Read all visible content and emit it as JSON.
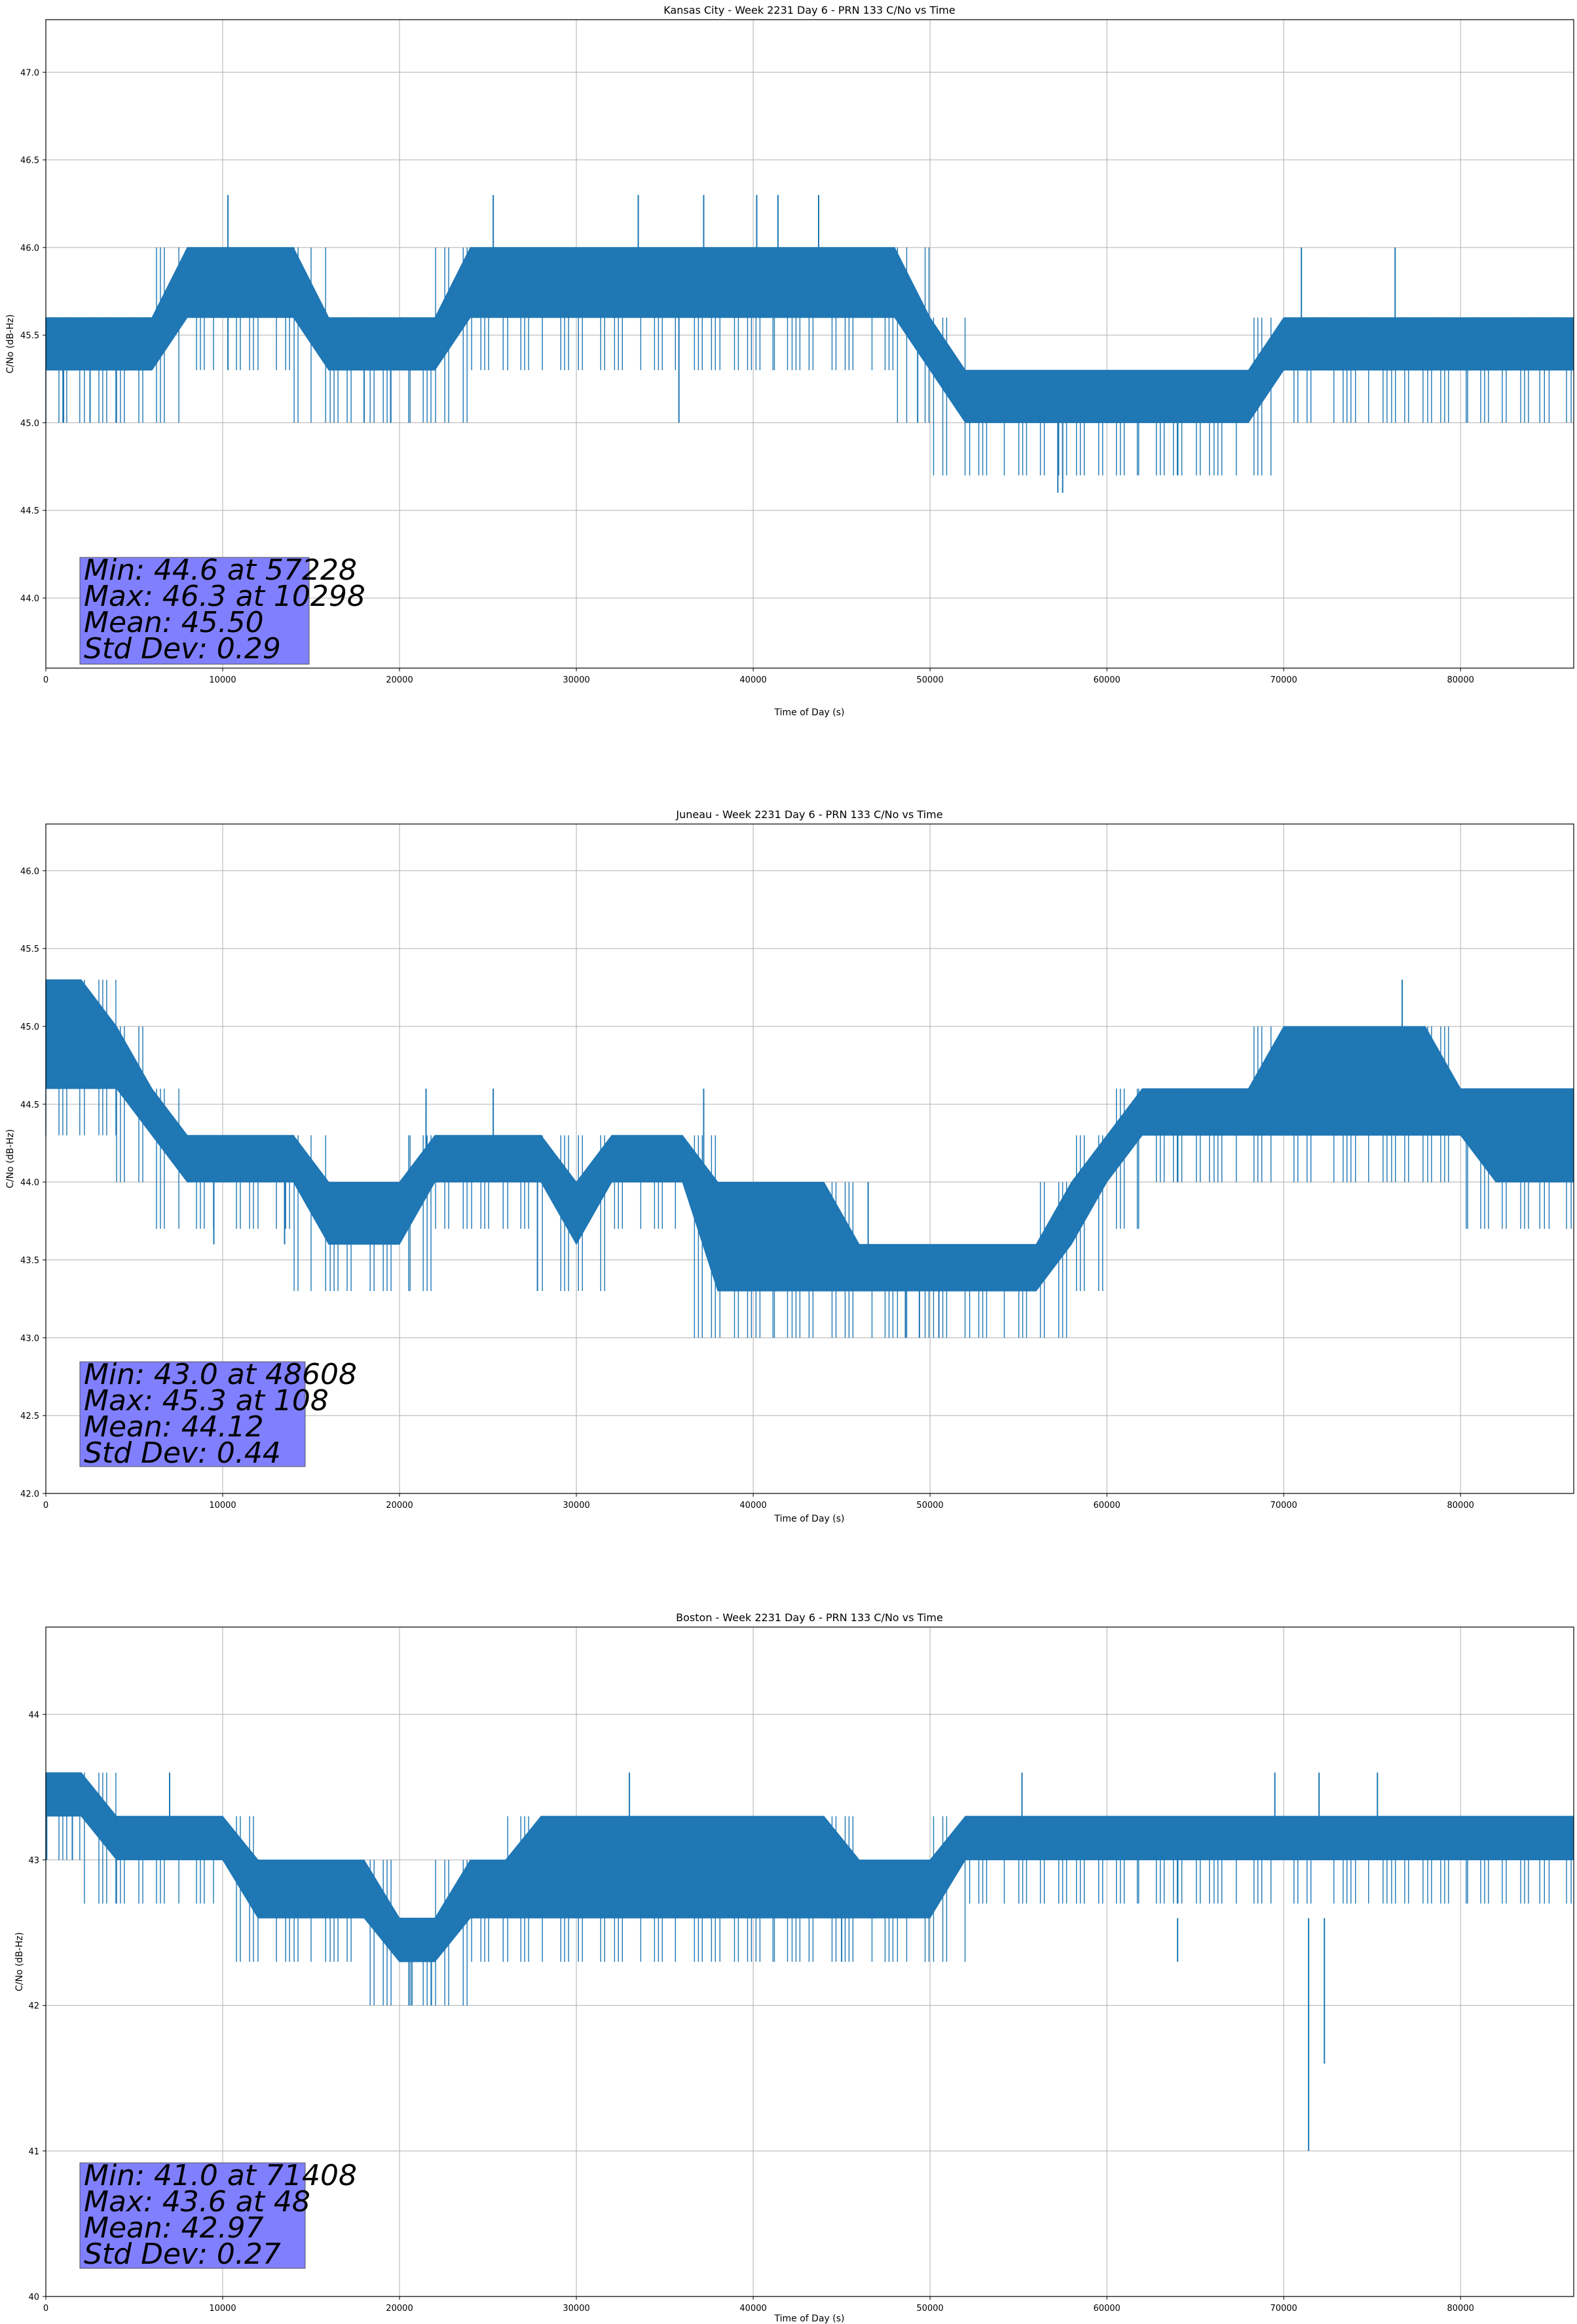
{
  "chart_data": [
    {
      "type": "line",
      "title": "Kansas City - Week 2231 Day 6 - PRN 133 C/No vs Time",
      "xlabel": "Time of Day (s)",
      "ylabel": "C/No (dB-Hz)",
      "xlim": [
        0,
        86400
      ],
      "ylim": [
        43.6,
        47.3
      ],
      "xticks": [
        0,
        10000,
        20000,
        30000,
        40000,
        50000,
        60000,
        70000,
        80000
      ],
      "yticks": [
        44.0,
        44.5,
        45.0,
        45.5,
        46.0,
        46.5,
        47.0
      ],
      "ytick_labels": [
        "44.0",
        "44.5",
        "45.0",
        "45.5",
        "46.0",
        "46.5",
        "47.0"
      ],
      "grid": true,
      "series_color": "#1f77b4",
      "series": [
        {
          "x": [
            0,
            2000,
            4000,
            6000,
            8000,
            10000,
            12000,
            14000,
            16000,
            18000,
            20000,
            22000,
            24000,
            26000,
            28000,
            30000,
            32000,
            34000,
            36000,
            38000,
            40000,
            42000,
            44000,
            46000,
            48000,
            50000,
            52000,
            54000,
            56000,
            58000,
            60000,
            62000,
            64000,
            66000,
            68000,
            70000,
            72000,
            74000,
            76000,
            78000,
            80000,
            82000,
            84000,
            86400
          ],
          "low": [
            45.3,
            45.3,
            45.3,
            45.3,
            45.6,
            45.6,
            45.6,
            45.6,
            45.3,
            45.3,
            45.3,
            45.3,
            45.6,
            45.6,
            45.6,
            45.6,
            45.6,
            45.6,
            45.6,
            45.6,
            45.6,
            45.6,
            45.6,
            45.6,
            45.6,
            45.3,
            45.0,
            45.0,
            45.0,
            45.0,
            45.0,
            45.0,
            45.0,
            45.0,
            45.0,
            45.3,
            45.3,
            45.3,
            45.3,
            45.3,
            45.3,
            45.3,
            45.3,
            45.3
          ],
          "high": [
            45.6,
            45.6,
            45.6,
            45.6,
            46.0,
            46.0,
            46.0,
            46.0,
            45.6,
            45.6,
            45.6,
            45.6,
            46.0,
            46.0,
            46.0,
            46.0,
            46.0,
            46.0,
            46.0,
            46.0,
            46.0,
            46.0,
            46.0,
            46.0,
            46.0,
            45.6,
            45.3,
            45.3,
            45.3,
            45.3,
            45.3,
            45.3,
            45.3,
            45.3,
            45.3,
            45.6,
            45.6,
            45.6,
            45.6,
            45.6,
            45.6,
            45.6,
            45.6,
            45.6
          ],
          "spikes": [
            [
              10298,
              45.3,
              46.3
            ],
            [
              25300,
              45.6,
              46.3
            ],
            [
              33500,
              45.6,
              46.3
            ],
            [
              37200,
              45.6,
              46.3
            ],
            [
              40200,
              45.6,
              46.3
            ],
            [
              41400,
              45.6,
              46.3
            ],
            [
              43700,
              45.6,
              46.3
            ],
            [
              57228,
              44.6,
              45.3
            ],
            [
              57500,
              44.6,
              45.3
            ],
            [
              71000,
              45.3,
              46.0
            ],
            [
              76300,
              45.3,
              46.0
            ],
            [
              18000,
              45.0,
              45.3
            ],
            [
              19500,
              45.0,
              45.3
            ],
            [
              35800,
              45.0,
              45.6
            ],
            [
              49300,
              45.0,
              45.6
            ],
            [
              1000,
              45.0,
              45.3
            ],
            [
              2500,
              45.0,
              45.3
            ]
          ]
        }
      ],
      "stats": [
        "Min: 44.6 at 57228",
        "Max: 46.3 at 10298",
        "Mean: 45.50",
        "Std Dev: 0.29"
      ]
    },
    {
      "type": "line",
      "title": "Juneau - Week 2231 Day 6 - PRN 133 C/No vs Time",
      "xlabel": "Time of Day (s)",
      "ylabel": "C/No (dB-Hz)",
      "xlim": [
        0,
        86400
      ],
      "ylim": [
        42.0,
        46.3
      ],
      "xticks": [
        0,
        10000,
        20000,
        30000,
        40000,
        50000,
        60000,
        70000,
        80000
      ],
      "yticks": [
        42.0,
        42.5,
        43.0,
        43.5,
        44.0,
        44.5,
        45.0,
        45.5,
        46.0
      ],
      "ytick_labels": [
        "42.0",
        "42.5",
        "43.0",
        "43.5",
        "44.0",
        "44.5",
        "45.0",
        "45.5",
        "46.0"
      ],
      "grid": true,
      "series_color": "#1f77b4",
      "series": [
        {
          "x": [
            0,
            2000,
            4000,
            6000,
            8000,
            10000,
            12000,
            14000,
            16000,
            18000,
            20000,
            22000,
            24000,
            26000,
            28000,
            30000,
            32000,
            34000,
            36000,
            38000,
            40000,
            42000,
            44000,
            46000,
            48000,
            50000,
            52000,
            54000,
            56000,
            58000,
            60000,
            62000,
            64000,
            66000,
            68000,
            70000,
            72000,
            74000,
            76000,
            78000,
            80000,
            82000,
            84000,
            86400
          ],
          "low": [
            44.6,
            44.6,
            44.6,
            44.3,
            44.0,
            44.0,
            44.0,
            44.0,
            43.6,
            43.6,
            43.6,
            44.0,
            44.0,
            44.0,
            44.0,
            43.6,
            44.0,
            44.0,
            44.0,
            43.3,
            43.3,
            43.3,
            43.3,
            43.3,
            43.3,
            43.3,
            43.3,
            43.3,
            43.3,
            43.6,
            44.0,
            44.3,
            44.3,
            44.3,
            44.3,
            44.3,
            44.3,
            44.3,
            44.3,
            44.3,
            44.3,
            44.0,
            44.0,
            44.0
          ],
          "high": [
            45.3,
            45.3,
            45.0,
            44.6,
            44.3,
            44.3,
            44.3,
            44.3,
            44.0,
            44.0,
            44.0,
            44.3,
            44.3,
            44.3,
            44.3,
            44.0,
            44.3,
            44.3,
            44.3,
            44.0,
            44.0,
            44.0,
            44.0,
            43.6,
            43.6,
            43.6,
            43.6,
            43.6,
            43.6,
            44.0,
            44.3,
            44.6,
            44.6,
            44.6,
            44.6,
            45.0,
            45.0,
            45.0,
            45.0,
            45.0,
            44.6,
            44.6,
            44.6,
            44.6
          ],
          "spikes": [
            [
              108,
              44.6,
              45.3
            ],
            [
              21500,
              44.0,
              44.6
            ],
            [
              25300,
              44.0,
              44.6
            ],
            [
              37200,
              44.0,
              44.6
            ],
            [
              48608,
              43.0,
              43.6
            ],
            [
              49400,
              43.0,
              43.6
            ],
            [
              50500,
              43.0,
              43.6
            ],
            [
              27800,
              43.3,
              44.0
            ],
            [
              76700,
              44.6,
              45.3
            ],
            [
              9500,
              43.6,
              44.0
            ],
            [
              13500,
              43.6,
              44.0
            ],
            [
              46500,
              43.3,
              44.0
            ]
          ]
        }
      ],
      "stats": [
        "Min: 43.0 at 48608",
        "Max: 45.3 at 108",
        "Mean: 44.12",
        "Std Dev: 0.44"
      ]
    },
    {
      "type": "line",
      "title": "Boston - Week 2231 Day 6 - PRN 133 C/No vs Time",
      "xlabel": "Time of Day (s)",
      "ylabel": "C/No (dB-Hz)",
      "xlim": [
        0,
        86400
      ],
      "ylim": [
        40.0,
        44.6
      ],
      "xticks": [
        0,
        10000,
        20000,
        30000,
        40000,
        50000,
        60000,
        70000,
        80000
      ],
      "yticks": [
        40,
        41,
        42,
        43,
        44
      ],
      "ytick_labels": [
        "40",
        "41",
        "42",
        "43",
        "44"
      ],
      "grid": true,
      "series_color": "#1f77b4",
      "series": [
        {
          "x": [
            0,
            2000,
            4000,
            6000,
            8000,
            10000,
            12000,
            14000,
            16000,
            18000,
            20000,
            22000,
            24000,
            26000,
            28000,
            30000,
            32000,
            34000,
            36000,
            38000,
            40000,
            42000,
            44000,
            46000,
            48000,
            50000,
            52000,
            54000,
            56000,
            58000,
            60000,
            62000,
            64000,
            66000,
            68000,
            70000,
            72000,
            74000,
            76000,
            78000,
            80000,
            82000,
            84000,
            86400
          ],
          "low": [
            43.3,
            43.3,
            43.0,
            43.0,
            43.0,
            43.0,
            42.6,
            42.6,
            42.6,
            42.6,
            42.3,
            42.3,
            42.6,
            42.6,
            42.6,
            42.6,
            42.6,
            42.6,
            42.6,
            42.6,
            42.6,
            42.6,
            42.6,
            42.6,
            42.6,
            42.6,
            43.0,
            43.0,
            43.0,
            43.0,
            43.0,
            43.0,
            43.0,
            43.0,
            43.0,
            43.0,
            43.0,
            43.0,
            43.0,
            43.0,
            43.0,
            43.0,
            43.0,
            43.0
          ],
          "high": [
            43.6,
            43.6,
            43.3,
            43.3,
            43.3,
            43.3,
            43.0,
            43.0,
            43.0,
            43.0,
            42.6,
            42.6,
            43.0,
            43.0,
            43.3,
            43.3,
            43.3,
            43.3,
            43.3,
            43.3,
            43.3,
            43.3,
            43.3,
            43.0,
            43.0,
            43.0,
            43.3,
            43.3,
            43.3,
            43.3,
            43.3,
            43.3,
            43.3,
            43.3,
            43.3,
            43.3,
            43.3,
            43.3,
            43.3,
            43.3,
            43.3,
            43.3,
            43.3,
            43.3
          ],
          "spikes": [
            [
              48,
              43.0,
              43.6
            ],
            [
              33000,
              43.0,
              43.6
            ],
            [
              55200,
              43.0,
              43.6
            ],
            [
              69500,
              43.0,
              43.6
            ],
            [
              72000,
              43.0,
              43.6
            ],
            [
              75300,
              43.0,
              43.6
            ],
            [
              71408,
              41.0,
              42.6
            ],
            [
              72300,
              41.6,
              42.6
            ],
            [
              20700,
              42.0,
              42.6
            ],
            [
              21800,
              42.0,
              42.6
            ],
            [
              45000,
              42.3,
              42.6
            ],
            [
              64000,
              42.3,
              42.6
            ],
            [
              7000,
              43.0,
              43.6
            ],
            [
              1500,
              43.0,
              43.6
            ]
          ]
        }
      ],
      "stats": [
        "Min: 41.0 at 71408",
        "Max: 43.6 at 48",
        "Mean: 42.97",
        "Std Dev: 0.27"
      ]
    }
  ]
}
